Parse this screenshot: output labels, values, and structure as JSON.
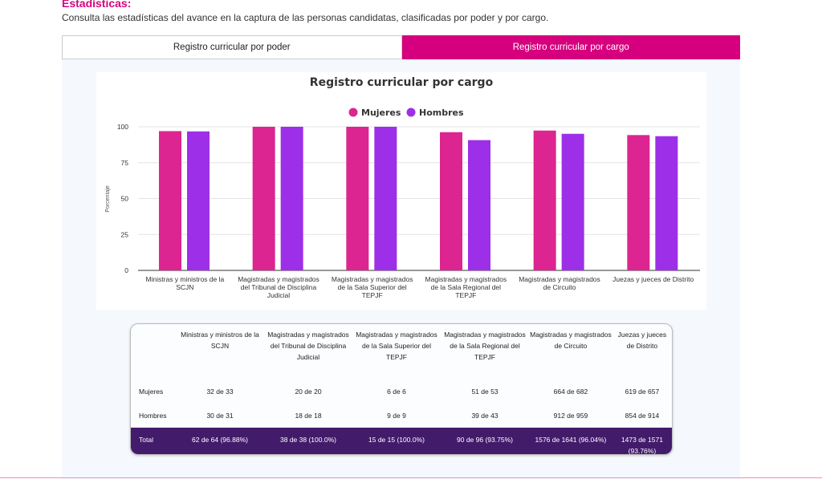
{
  "header": {
    "title": "Estadísticas:",
    "description": "Consulta las estadísticas del avance en la captura de las personas candidatas, clasificadas por poder y por cargo."
  },
  "tabs": [
    {
      "label": "Registro curricular por poder",
      "active": false
    },
    {
      "label": "Registro curricular por cargo",
      "active": true
    }
  ],
  "chart_data": {
    "type": "bar",
    "title": "Registro curricular por cargo",
    "ylabel": "Porcentaje",
    "ylim": [
      0,
      100
    ],
    "yticks": [
      "0",
      "25",
      "50",
      "75",
      "100"
    ],
    "grid": true,
    "legend_position": "top",
    "categories": [
      "Ministras y ministros de la SCJN",
      "Magistradas y magistrados del Tribunal de Disciplina Judicial",
      "Magistradas y magistrados de la Sala Superior del TEPJF",
      "Magistradas y magistrados de la Sala Regional del TEPJF",
      "Magistradas y magistrados de Circuito",
      "Juezas y jueces de Distrito"
    ],
    "series": [
      {
        "name": "Mujeres",
        "color": "#dc2590",
        "values": [
          96.97,
          100,
          100,
          96.23,
          97.36,
          94.22
        ]
      },
      {
        "name": "Hombres",
        "color": "#9d2fe8",
        "values": [
          96.77,
          100,
          100,
          90.7,
          95.1,
          93.44
        ]
      }
    ]
  },
  "table": {
    "headers": [
      "",
      "Ministras y ministros de la SCJN",
      "Magistradas y magistrados del Tribunal de Disciplina Judicial",
      "Magistradas y magistrados de la Sala Superior del TEPJF",
      "Magistradas y magistrados de la Sala Regional del TEPJF",
      "Magistradas y magistrados de Circuito",
      "Juezas y jueces de Distrito"
    ],
    "rows": [
      [
        "Mujeres",
        "32 de 33",
        "20 de 20",
        "6 de 6",
        "51 de 53",
        "664 de 682",
        "619 de 657"
      ],
      [
        "Hombres",
        "30 de 31",
        "18 de 18",
        "9 de 9",
        "39 de 43",
        "912 de 959",
        "854 de 914"
      ],
      [
        "Total",
        "62 de 64 (96.88%)",
        "38 de 38 (100.0%)",
        "15 de 15 (100.0%)",
        "90 de 96 (93.75%)",
        "1576 de 1641 (96.04%)",
        "1473 de 1571 (93.76%)"
      ]
    ]
  }
}
